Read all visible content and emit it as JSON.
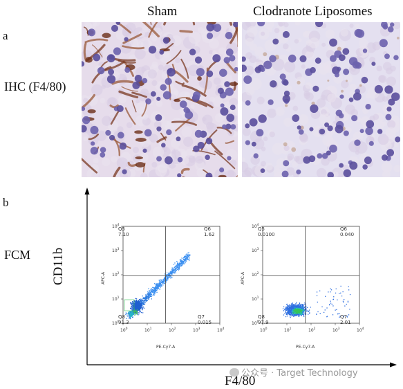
{
  "panel_a": {
    "letter": "a",
    "row_label": "IHC (F4/80)",
    "columns": [
      "Sham",
      "Clodranote Liposomes"
    ]
  },
  "panel_b": {
    "letter": "b",
    "row_label": "FCM",
    "y_axis_title": "CD11b",
    "x_axis_title": "F4/80",
    "plots": [
      {
        "x_channel": "PE-Cy7-A",
        "y_channel": "APC-A",
        "quadrants": [
          {
            "name": "Q5",
            "value": "7.10"
          },
          {
            "name": "Q6",
            "value": "1.62"
          },
          {
            "name": "Q7",
            "value": "0.015"
          },
          {
            "name": "Q8",
            "value": "91.3"
          }
        ]
      },
      {
        "x_channel": "PE-Cy7-A",
        "y_channel": "APC-A",
        "quadrants": [
          {
            "name": "Q5",
            "value": "0.0100"
          },
          {
            "name": "Q6",
            "value": "0.040"
          },
          {
            "name": "Q7",
            "value": "2.01"
          },
          {
            "name": "Q8",
            "value": "97.9"
          }
        ]
      }
    ],
    "x_ticks": [
      "10",
      "10",
      "10",
      "10",
      "10"
    ],
    "tick_exponents": [
      "0",
      "1",
      "2",
      "3",
      "4"
    ],
    "y_ticks": [
      "10",
      "10",
      "10",
      "10",
      "10"
    ]
  },
  "watermark": "公众号 · Target Technology"
}
